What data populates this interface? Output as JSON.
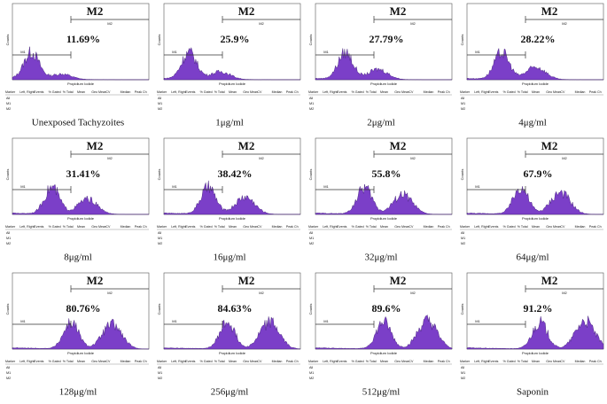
{
  "axis_labels": {
    "x": "Propidium Iodide",
    "y": "Counts"
  },
  "gate_labels": {
    "m1": "M1",
    "m2": "M2"
  },
  "table": {
    "columns": [
      "Marker",
      "Left, Right",
      "Events",
      "% Gated",
      "% Total",
      "Mean",
      "Geo Mean",
      "CV",
      "Median",
      "Peak Ch"
    ],
    "markers": [
      "All",
      "M1",
      "M2"
    ]
  },
  "panels": [
    {
      "percent": "11.69%",
      "caption": "Unexposed Tachyzoites"
    },
    {
      "percent": "25.9%",
      "caption": "1μg/ml"
    },
    {
      "percent": "27.79%",
      "caption": "2μg/ml"
    },
    {
      "percent": "28.22%",
      "caption": "4μg/ml"
    },
    {
      "percent": "31.41%",
      "caption": "8μg/ml"
    },
    {
      "percent": "38.42%",
      "caption": "16μg/ml"
    },
    {
      "percent": "55.8%",
      "caption": "32μg/ml"
    },
    {
      "percent": "67.9%",
      "caption": "64μg/ml"
    },
    {
      "percent": "80.76%",
      "caption": "128μg/ml"
    },
    {
      "percent": "84.63%",
      "caption": "256μg/ml"
    },
    {
      "percent": "89.6%",
      "caption": "512μg/ml"
    },
    {
      "percent": "91.2%",
      "caption": "Saponin"
    }
  ]
}
